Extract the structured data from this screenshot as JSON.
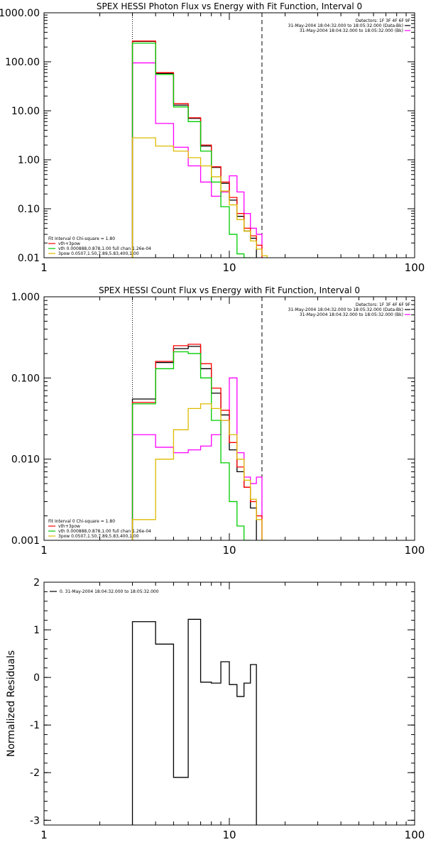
{
  "chart_data": [
    {
      "type": "line",
      "step": true,
      "title": "SPEX HESSI Photon Flux vs Energy with Fit Function, Interval 0",
      "xlabel": "",
      "ylabel": "",
      "xscale": "log",
      "yscale": "log",
      "xlim": [
        1,
        100
      ],
      "ylim": [
        0.01,
        1000
      ],
      "xticks": [
        1,
        10,
        100
      ],
      "xtick_labels": [
        "1",
        "10",
        "100"
      ],
      "yticks": [
        0.01,
        0.1,
        1,
        10,
        100,
        1000
      ],
      "ytick_labels": [
        "0.01",
        "0.10",
        "1.00",
        "10.00",
        "100.00",
        "1000.00"
      ],
      "bin_edges": [
        3,
        4,
        5,
        6,
        7,
        8,
        9,
        10,
        11,
        12,
        13,
        14,
        15,
        16
      ],
      "vlines": [
        {
          "x": 3,
          "style": "dotted"
        },
        {
          "x": 15,
          "style": "dashed"
        }
      ],
      "series": [
        {
          "name": "",
          "color": "#000000",
          "values": [
            260,
            58,
            13,
            7,
            1.9,
            0.7,
            0.33,
            0.15,
            0.07,
            0.035,
            0.025,
            null,
            null
          ]
        },
        {
          "name": "",
          "color": "#ff00ff",
          "values": [
            95,
            5.5,
            1.8,
            0.75,
            0.35,
            0.18,
            0.22,
            0.47,
            0.22,
            0.08,
            0.04,
            0.03,
            null
          ]
        },
        {
          "name": "vth+3pow",
          "color": "#ff0000",
          "values": [
            265,
            60,
            14,
            7.2,
            2.0,
            0.72,
            0.35,
            0.17,
            0.08,
            0.04,
            0.028,
            0.018,
            null
          ]
        },
        {
          "name": "vth 0.000888,0.878,1.00  full chan 1.26e-04",
          "color": "#00cc00",
          "values": [
            240,
            55,
            12,
            6,
            1.5,
            0.35,
            0.11,
            0.03,
            0.012,
            0.01,
            null,
            null,
            null
          ]
        },
        {
          "name": "3pow 0.0507,1.50,7.89,5.83,400,1.00",
          "color": "#ddbb00",
          "values": [
            2.8,
            1.9,
            1.5,
            1.1,
            0.75,
            0.45,
            0.23,
            0.12,
            0.06,
            0.035,
            0.022,
            0.015,
            0.011
          ]
        }
      ],
      "legend_header": [
        "Detectors: 1F 3F 4F 6F 9F",
        "31-May-2004 18:04:32.000 to 18:05:32.000 (Data-Bk)",
        "31-May-2004 18:04:32.000 to 18:05:32.000 (Bk)"
      ],
      "legend_header_colors": [
        "",
        "#000000",
        "#ff00ff"
      ],
      "fit_header": "Fit Interval 0   Chi-square = 1.80"
    },
    {
      "type": "line",
      "step": true,
      "title": "SPEX HESSI Count Flux vs Energy with Fit Function, Interval 0",
      "xlabel": "",
      "ylabel": "",
      "xscale": "log",
      "yscale": "log",
      "xlim": [
        1,
        100
      ],
      "ylim": [
        0.001,
        1
      ],
      "xticks": [
        1,
        10,
        100
      ],
      "xtick_labels": [
        "1",
        "10",
        "100"
      ],
      "yticks": [
        0.001,
        0.01,
        0.1,
        1
      ],
      "ytick_labels": [
        "0.001",
        "0.010",
        "0.100",
        "1.000"
      ],
      "bin_edges": [
        3,
        4,
        5,
        6,
        7,
        8,
        9,
        10,
        11,
        12,
        13,
        14,
        15,
        16
      ],
      "vlines": [
        {
          "x": 3,
          "style": "dotted"
        },
        {
          "x": 15,
          "style": "dashed"
        }
      ],
      "series": [
        {
          "name": "",
          "color": "#000000",
          "values": [
            0.055,
            0.155,
            0.23,
            0.245,
            0.13,
            0.065,
            0.035,
            0.013,
            0.007,
            0.0045,
            0.0025,
            null,
            null
          ]
        },
        {
          "name": "",
          "color": "#ff00ff",
          "values": [
            0.02,
            0.014,
            0.012,
            0.013,
            0.0145,
            0.02,
            0.03,
            0.1,
            0.012,
            0.006,
            0.005,
            0.006,
            null
          ]
        },
        {
          "name": "vth+3pow",
          "color": "#ff0000",
          "values": [
            0.05,
            0.16,
            0.25,
            0.26,
            0.15,
            0.075,
            0.04,
            0.016,
            0.008,
            0.0045,
            0.003,
            0.002,
            null
          ]
        },
        {
          "name": "vth 0.000888,0.878,1.00  full chan 1.26e-04",
          "color": "#00cc00",
          "values": [
            0.048,
            0.13,
            0.21,
            0.2,
            0.1,
            0.03,
            0.009,
            0.003,
            0.0015,
            0.001,
            null,
            null,
            null
          ]
        },
        {
          "name": "3pow 0.0507,1.50,7.89,5.83,400,1.00",
          "color": "#ddbb00",
          "values": [
            0.0018,
            0.01,
            0.023,
            0.042,
            0.048,
            0.042,
            0.03,
            0.02,
            0.01,
            0.0055,
            0.0032,
            0.0018,
            0.001
          ]
        }
      ],
      "legend_header": [
        "Detectors: 1F 3F 4F 6F 9F",
        "31-May-2004 18:04:32.000 to 18:05:32.000 (Data-Bk)",
        "31-May-2004 18:04:32.000 to 18:05:32.000 (Bk)"
      ],
      "legend_header_colors": [
        "",
        "#000000",
        "#ff00ff"
      ],
      "fit_header": "Fit Interval 0   Chi-square = 1.80"
    },
    {
      "type": "line",
      "step": true,
      "title": "",
      "xlabel": "",
      "ylabel": "Normalized Residuals",
      "xscale": "log",
      "yscale": "linear",
      "xlim": [
        1,
        100
      ],
      "ylim": [
        -3.1,
        2
      ],
      "xticks": [
        1,
        10,
        100
      ],
      "xtick_labels": [
        "1",
        "10",
        "100"
      ],
      "yticks": [
        -3,
        -2,
        -1,
        0,
        1,
        2
      ],
      "ytick_labels": [
        "-3",
        "-2",
        "-1",
        "0",
        "1",
        "2"
      ],
      "bin_edges": [
        3,
        4,
        5,
        6,
        7,
        8,
        9,
        10,
        11,
        12,
        13,
        14,
        15
      ],
      "drop_to": -3.1,
      "vlines": [],
      "series": [
        {
          "name": "0. 31-May-2004 18:04:32.000 to 18:05:32.000",
          "color": "#000000",
          "values": [
            1.17,
            0.7,
            -2.1,
            1.22,
            -0.1,
            -0.12,
            0.33,
            -0.15,
            -0.4,
            -0.12,
            0.27,
            null
          ]
        }
      ],
      "legend_header": [],
      "legend_header_colors": [],
      "fit_header": ""
    }
  ]
}
